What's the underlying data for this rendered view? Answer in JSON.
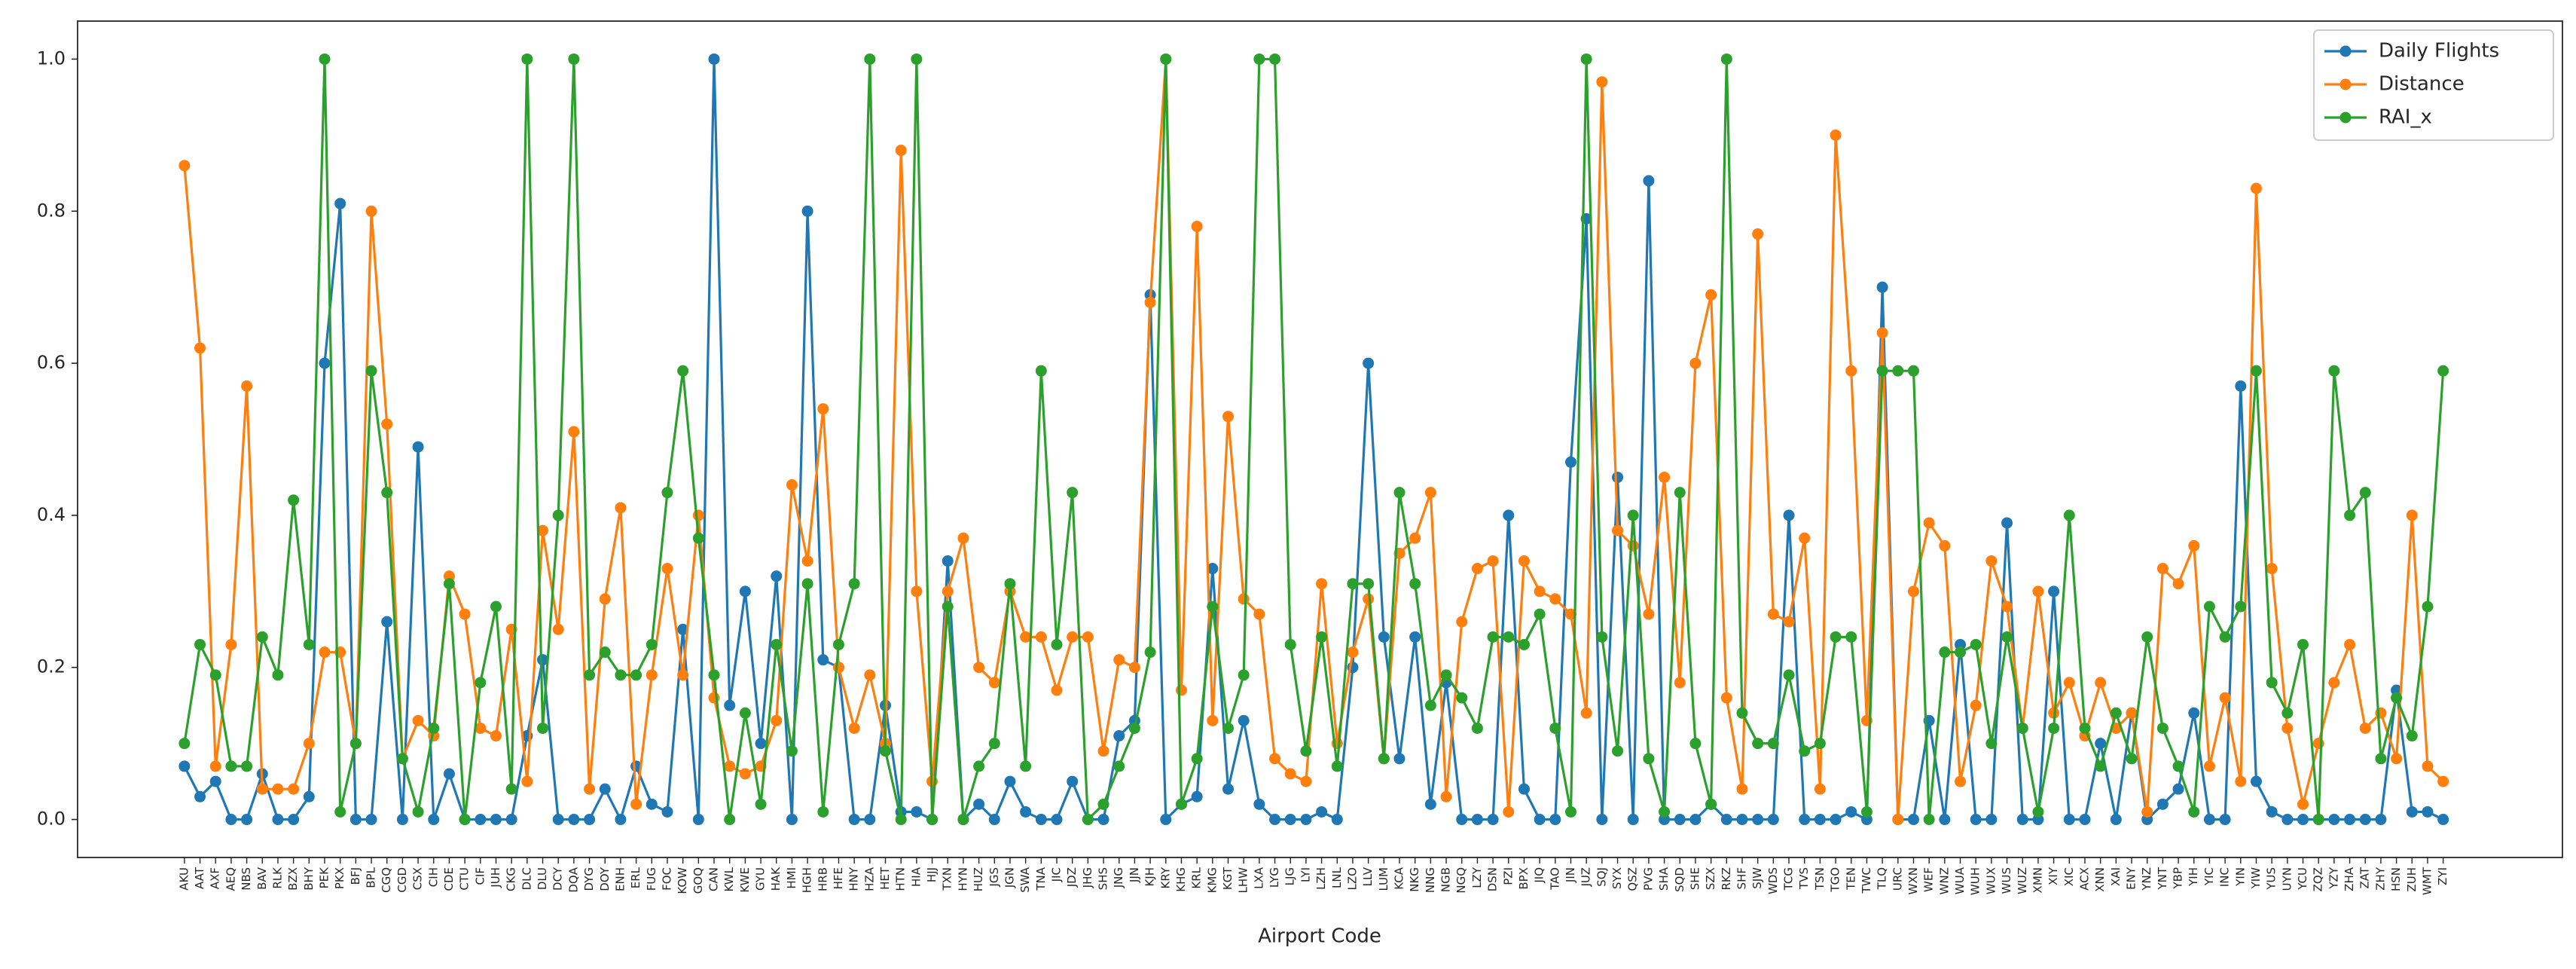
{
  "chart_data": {
    "type": "line",
    "xlabel": "Airport Code",
    "categories": [
      "AKU",
      "AAT",
      "AXF",
      "AEQ",
      "NBS",
      "BAV",
      "RLK",
      "BZX",
      "BHY",
      "PEK",
      "PKX",
      "BFJ",
      "BPL",
      "CGQ",
      "CGD",
      "CSX",
      "CIH",
      "CDE",
      "CTU",
      "CIF",
      "JUH",
      "CKG",
      "DLC",
      "DLU",
      "DCY",
      "DQA",
      "DYG",
      "DOY",
      "ENH",
      "ERL",
      "FUG",
      "FOC",
      "KOW",
      "GOQ",
      "CAN",
      "KWL",
      "KWE",
      "GYU",
      "HAK",
      "HMI",
      "HGH",
      "HRB",
      "HFE",
      "HNY",
      "HZA",
      "HET",
      "HTN",
      "HIA",
      "HJJ",
      "TXN",
      "HYN",
      "HUZ",
      "JGS",
      "JGN",
      "SWA",
      "TNA",
      "JIC",
      "JDZ",
      "JHG",
      "SHS",
      "JNG",
      "JJN",
      "KJH",
      "KRY",
      "KHG",
      "KRL",
      "KMG",
      "KGT",
      "LHW",
      "LXA",
      "LYG",
      "LJG",
      "LYI",
      "LZH",
      "LNL",
      "LZO",
      "LLV",
      "LUM",
      "KCA",
      "NKG",
      "NNG",
      "NGB",
      "NGQ",
      "LZY",
      "DSN",
      "PZI",
      "BPX",
      "JIQ",
      "TAO",
      "JIN",
      "JUZ",
      "SQJ",
      "SYX",
      "QSZ",
      "PVG",
      "SHA",
      "SQD",
      "SHE",
      "SZX",
      "RKZ",
      "SHF",
      "SJW",
      "WDS",
      "TCG",
      "TVS",
      "TSN",
      "TGO",
      "TEN",
      "TWC",
      "TLQ",
      "URC",
      "WXN",
      "WEF",
      "WNZ",
      "WUA",
      "WUH",
      "WUX",
      "WUS",
      "WUZ",
      "XMN",
      "XIY",
      "XIC",
      "ACX",
      "XNN",
      "XAI",
      "ENY",
      "YNZ",
      "YNT",
      "YBP",
      "YIH",
      "YIC",
      "INC",
      "YIN",
      "YIW",
      "YUS",
      "UYN",
      "YCU",
      "ZQZ",
      "YZY",
      "ZHA",
      "ZAT",
      "ZHY",
      "HSN",
      "ZUH",
      "WMT",
      "ZYI"
    ],
    "series": [
      {
        "name": "Daily Flights",
        "color": "#1f77b4",
        "values": [
          0.07,
          0.03,
          0.05,
          0,
          0,
          0.06,
          0,
          0,
          0.03,
          0.6,
          0.81,
          0,
          0,
          0.26,
          0,
          0.49,
          0,
          0.06,
          0,
          0,
          0,
          0,
          0.11,
          0.21,
          0,
          0,
          0,
          0.04,
          0,
          0.07,
          0.02,
          0.01,
          0.25,
          0,
          1.0,
          0.15,
          0.3,
          0.1,
          0.32,
          0,
          0.8,
          0.21,
          0.2,
          0,
          0,
          0.15,
          0.01,
          0.01,
          0,
          0.34,
          0,
          0.02,
          0,
          0.05,
          0.01,
          0,
          0,
          0.05,
          0,
          0,
          0.11,
          0.13,
          0.69,
          0,
          0.02,
          0.03,
          0.33,
          0.04,
          0.13,
          0.02,
          0,
          0,
          0,
          0.01,
          0,
          0.2,
          0.6,
          0.24,
          0.08,
          0.24,
          0.02,
          0.18,
          0,
          0,
          0,
          0.4,
          0.04,
          0,
          0,
          0.47,
          0.79,
          0,
          0.45,
          0,
          0.84,
          0,
          0,
          0,
          0.02,
          0,
          0,
          0,
          0,
          0.4,
          0,
          0,
          0,
          0.01,
          0,
          0.7,
          0,
          0,
          0.13,
          0,
          0.23,
          0,
          0,
          0.39,
          0,
          0,
          0.3,
          0,
          0,
          0.1,
          0,
          0.14,
          0,
          0.02,
          0.04,
          0.14,
          0,
          0,
          0.57,
          0.05,
          0.01,
          0,
          0,
          0,
          0,
          0,
          0,
          0,
          0.17,
          0.01,
          0.01,
          0
        ]
      },
      {
        "name": "Distance",
        "color": "#ff7f0e",
        "values": [
          0.86,
          0.62,
          0.07,
          0.23,
          0.57,
          0.04,
          0.04,
          0.04,
          0.1,
          0.22,
          0.22,
          0.1,
          0.8,
          0.52,
          0.08,
          0.13,
          0.11,
          0.32,
          0.27,
          0.12,
          0.11,
          0.25,
          0.05,
          0.38,
          0.25,
          0.51,
          0.04,
          0.29,
          0.41,
          0.02,
          0.19,
          0.33,
          0.19,
          0.4,
          0.16,
          0.07,
          0.06,
          0.07,
          0.13,
          0.44,
          0.34,
          0.54,
          0.2,
          0.12,
          0.19,
          0.1,
          0.88,
          0.3,
          0.05,
          0.3,
          0.37,
          0.2,
          0.18,
          0.3,
          0.24,
          0.24,
          0.17,
          0.24,
          0.24,
          0.09,
          0.21,
          0.2,
          0.68,
          1.0,
          0.17,
          0.78,
          0.13,
          0.53,
          0.29,
          0.27,
          0.08,
          0.06,
          0.05,
          0.31,
          0.1,
          0.22,
          0.29,
          0.08,
          0.35,
          0.37,
          0.43,
          0.03,
          0.26,
          0.33,
          0.34,
          0.01,
          0.34,
          0.3,
          0.29,
          0.27,
          0.14,
          0.97,
          0.38,
          0.36,
          0.27,
          0.45,
          0.18,
          0.6,
          0.69,
          0.16,
          0.04,
          0.77,
          0.27,
          0.26,
          0.37,
          0.04,
          0.9,
          0.59,
          0.13,
          0.64,
          0,
          0.3,
          0.39,
          0.36,
          0.05,
          0.15,
          0.34,
          0.28,
          0.12,
          0.3,
          0.14,
          0.18,
          0.11,
          0.18,
          0.12,
          0.14,
          0.01,
          0.33,
          0.31,
          0.36,
          0.07,
          0.16,
          0.05,
          0.83,
          0.33,
          0.12,
          0.02,
          0.1,
          0.18,
          0.23,
          0.12,
          0.14,
          0.08,
          0.4,
          0.07,
          0.05
        ]
      },
      {
        "name": "RAI_x",
        "color": "#2ca02c",
        "values": [
          0.1,
          0.23,
          0.19,
          0.07,
          0.07,
          0.24,
          0.19,
          0.42,
          0.23,
          1.0,
          0.01,
          0.1,
          0.59,
          0.43,
          0.08,
          0.01,
          0.12,
          0.31,
          0,
          0.18,
          0.28,
          0.04,
          1.0,
          0.12,
          0.4,
          1.0,
          0.19,
          0.22,
          0.19,
          0.19,
          0.23,
          0.43,
          0.59,
          0.37,
          0.19,
          0,
          0.14,
          0.02,
          0.23,
          0.09,
          0.31,
          0.01,
          0.23,
          0.31,
          1.0,
          0.09,
          0,
          1.0,
          0,
          0.28,
          0,
          0.07,
          0.1,
          0.31,
          0.07,
          0.59,
          0.23,
          0.43,
          0,
          0.02,
          0.07,
          0.12,
          0.22,
          1.0,
          0.02,
          0.08,
          0.28,
          0.12,
          0.19,
          1.0,
          1.0,
          0.23,
          0.09,
          0.24,
          0.07,
          0.31,
          0.31,
          0.08,
          0.43,
          0.31,
          0.15,
          0.19,
          0.16,
          0.12,
          0.24,
          0.24,
          0.23,
          0.27,
          0.12,
          0.01,
          1.0,
          0.24,
          0.09,
          0.4,
          0.08,
          0.01,
          0.43,
          0.1,
          0.02,
          1.0,
          0.14,
          0.1,
          0.1,
          0.19,
          0.09,
          0.1,
          0.24,
          0.24,
          0.01,
          0.59,
          0.59,
          0.59,
          0,
          0.22,
          0.22,
          0.23,
          0.1,
          0.24,
          0.12,
          0.01,
          0.12,
          0.4,
          0.12,
          0.07,
          0.14,
          0.08,
          0.24,
          0.12,
          0.07,
          0.01,
          0.28,
          0.24,
          0.28,
          0.59,
          0.18,
          0.14,
          0.23,
          0,
          0.59,
          0.4,
          0.43,
          0.08,
          0.16,
          0.11,
          0.28,
          0.59
        ]
      }
    ],
    "ylim": [
      -0.05,
      1.05
    ],
    "yticks": [
      {
        "value": 0,
        "label": "0.0"
      },
      0.2,
      0.4,
      0.6,
      0.8,
      {
        "value": 1,
        "label": "1.0"
      }
    ],
    "legend": "upper right"
  }
}
